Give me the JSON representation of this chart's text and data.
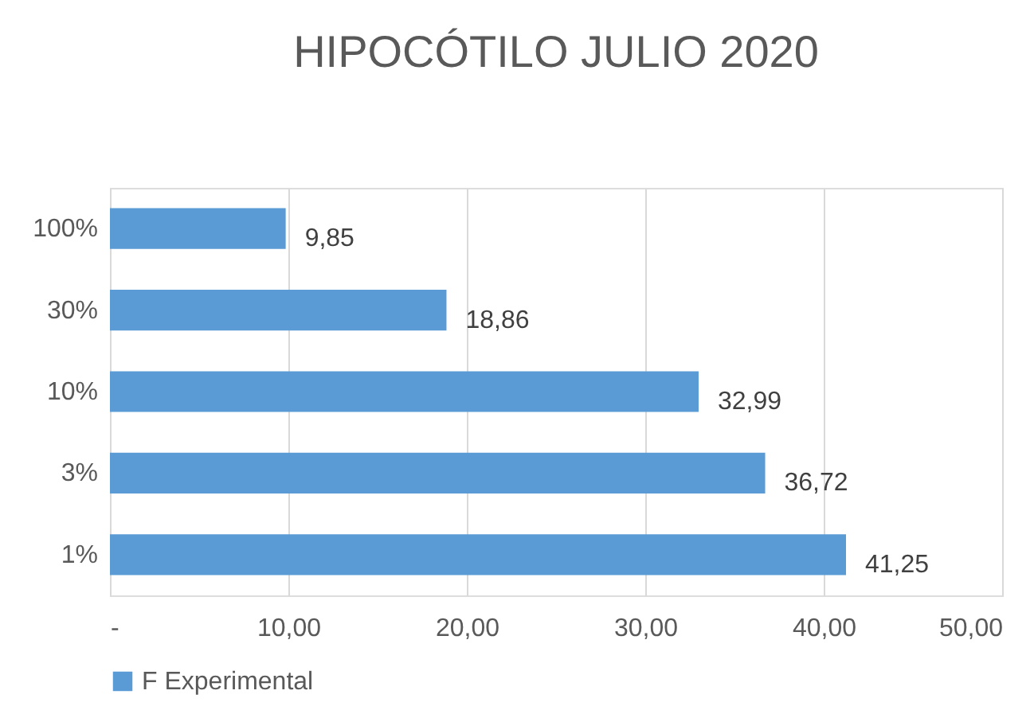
{
  "chart_data": {
    "type": "bar",
    "orientation": "horizontal",
    "title": "HIPOCÓTILO JULIO 2020",
    "categories": [
      "100%",
      "30%",
      "10%",
      "3%",
      "1%"
    ],
    "series": [
      {
        "name": "F Experimental",
        "color": "#5b9bd5",
        "values": [
          9.85,
          18.86,
          32.99,
          36.72,
          41.25
        ],
        "value_labels": [
          "9,85",
          "18,86",
          "32,99",
          "36,72",
          "41,25"
        ]
      }
    ],
    "xlim": [
      0,
      50
    ],
    "xticks": [
      {
        "value": 0,
        "label": "-"
      },
      {
        "value": 10,
        "label": "10,00"
      },
      {
        "value": 20,
        "label": "20,00"
      },
      {
        "value": 30,
        "label": "30,00"
      },
      {
        "value": 40,
        "label": "40,00"
      },
      {
        "value": 50,
        "label": "50,00"
      }
    ],
    "grid": "x",
    "legend": "bottom"
  }
}
